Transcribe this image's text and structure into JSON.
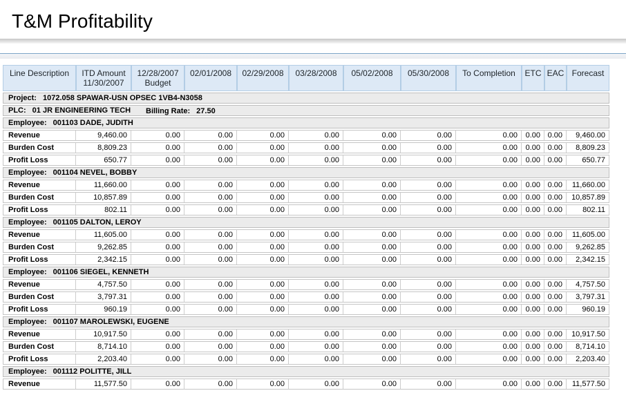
{
  "title": "T&M Profitability",
  "report": {
    "columns": [
      {
        "lines": [
          "Line Description"
        ]
      },
      {
        "lines": [
          "ITD Amount",
          "11/30/2007"
        ]
      },
      {
        "lines": [
          "12/28/2007",
          "Budget"
        ]
      },
      {
        "lines": [
          "02/01/2008"
        ]
      },
      {
        "lines": [
          "02/29/2008"
        ]
      },
      {
        "lines": [
          "03/28/2008"
        ]
      },
      {
        "lines": [
          "05/02/2008"
        ]
      },
      {
        "lines": [
          "05/30/2008"
        ]
      },
      {
        "lines": [
          "To Completion"
        ]
      },
      {
        "lines": [
          "ETC"
        ]
      },
      {
        "lines": [
          "EAC"
        ]
      },
      {
        "lines": [
          "Forecast"
        ]
      }
    ],
    "project_row": {
      "label": "Project:",
      "value": "1072.058 SPAWAR-USN OPSEC 1VB4-N3058"
    },
    "plc_row": {
      "label": "PLC:",
      "value": "01 JR ENGINEERING TECH",
      "billing_label": "Billing Rate:",
      "billing_value": "27.50"
    },
    "employee_label": "Employee:",
    "groups": [
      {
        "employee": "001103 DADE, JUDITH",
        "rows": [
          {
            "line": "Revenue",
            "values": [
              "9,460.00",
              "0.00",
              "0.00",
              "0.00",
              "0.00",
              "0.00",
              "0.00",
              "0.00",
              "0.00",
              "0.00",
              "9,460.00"
            ]
          },
          {
            "line": "Burden Cost",
            "values": [
              "8,809.23",
              "0.00",
              "0.00",
              "0.00",
              "0.00",
              "0.00",
              "0.00",
              "0.00",
              "0.00",
              "0.00",
              "8,809.23"
            ]
          },
          {
            "line": "Profit Loss",
            "values": [
              "650.77",
              "0.00",
              "0.00",
              "0.00",
              "0.00",
              "0.00",
              "0.00",
              "0.00",
              "0.00",
              "0.00",
              "650.77"
            ]
          }
        ]
      },
      {
        "employee": "001104 NEVEL, BOBBY",
        "rows": [
          {
            "line": "Revenue",
            "values": [
              "11,660.00",
              "0.00",
              "0.00",
              "0.00",
              "0.00",
              "0.00",
              "0.00",
              "0.00",
              "0.00",
              "0.00",
              "11,660.00"
            ]
          },
          {
            "line": "Burden Cost",
            "values": [
              "10,857.89",
              "0.00",
              "0.00",
              "0.00",
              "0.00",
              "0.00",
              "0.00",
              "0.00",
              "0.00",
              "0.00",
              "10,857.89"
            ]
          },
          {
            "line": "Profit Loss",
            "values": [
              "802.11",
              "0.00",
              "0.00",
              "0.00",
              "0.00",
              "0.00",
              "0.00",
              "0.00",
              "0.00",
              "0.00",
              "802.11"
            ]
          }
        ]
      },
      {
        "employee": "001105 DALTON, LEROY",
        "rows": [
          {
            "line": "Revenue",
            "values": [
              "11,605.00",
              "0.00",
              "0.00",
              "0.00",
              "0.00",
              "0.00",
              "0.00",
              "0.00",
              "0.00",
              "0.00",
              "11,605.00"
            ]
          },
          {
            "line": "Burden Cost",
            "values": [
              "9,262.85",
              "0.00",
              "0.00",
              "0.00",
              "0.00",
              "0.00",
              "0.00",
              "0.00",
              "0.00",
              "0.00",
              "9,262.85"
            ]
          },
          {
            "line": "Profit Loss",
            "values": [
              "2,342.15",
              "0.00",
              "0.00",
              "0.00",
              "0.00",
              "0.00",
              "0.00",
              "0.00",
              "0.00",
              "0.00",
              "2,342.15"
            ]
          }
        ]
      },
      {
        "employee": "001106 SIEGEL, KENNETH",
        "rows": [
          {
            "line": "Revenue",
            "values": [
              "4,757.50",
              "0.00",
              "0.00",
              "0.00",
              "0.00",
              "0.00",
              "0.00",
              "0.00",
              "0.00",
              "0.00",
              "4,757.50"
            ]
          },
          {
            "line": "Burden Cost",
            "values": [
              "3,797.31",
              "0.00",
              "0.00",
              "0.00",
              "0.00",
              "0.00",
              "0.00",
              "0.00",
              "0.00",
              "0.00",
              "3,797.31"
            ]
          },
          {
            "line": "Profit Loss",
            "values": [
              "960.19",
              "0.00",
              "0.00",
              "0.00",
              "0.00",
              "0.00",
              "0.00",
              "0.00",
              "0.00",
              "0.00",
              "960.19"
            ]
          }
        ]
      },
      {
        "employee": "001107 MAROLEWSKI, EUGENE",
        "rows": [
          {
            "line": "Revenue",
            "values": [
              "10,917.50",
              "0.00",
              "0.00",
              "0.00",
              "0.00",
              "0.00",
              "0.00",
              "0.00",
              "0.00",
              "0.00",
              "10,917.50"
            ]
          },
          {
            "line": "Burden Cost",
            "values": [
              "8,714.10",
              "0.00",
              "0.00",
              "0.00",
              "0.00",
              "0.00",
              "0.00",
              "0.00",
              "0.00",
              "0.00",
              "8,714.10"
            ]
          },
          {
            "line": "Profit Loss",
            "values": [
              "2,203.40",
              "0.00",
              "0.00",
              "0.00",
              "0.00",
              "0.00",
              "0.00",
              "0.00",
              "0.00",
              "0.00",
              "2,203.40"
            ]
          }
        ]
      },
      {
        "employee": "001112 POLITTE, JILL",
        "rows": [
          {
            "line": "Revenue",
            "values": [
              "11,577.50",
              "0.00",
              "0.00",
              "0.00",
              "0.00",
              "0.00",
              "0.00",
              "0.00",
              "0.00",
              "0.00",
              "11,577.50"
            ]
          }
        ]
      }
    ]
  }
}
